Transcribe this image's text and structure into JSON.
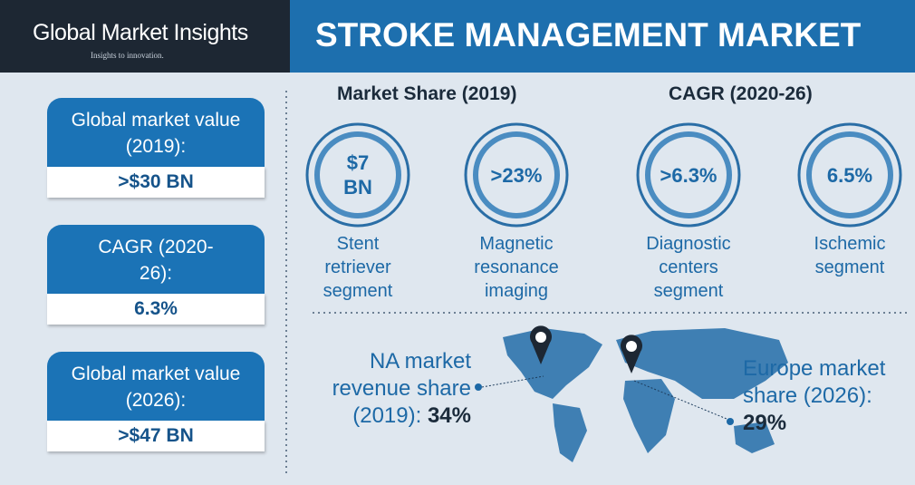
{
  "header": {
    "brand": "Global Market Insights",
    "tagline": "Insights to innovation.",
    "title": "STROKE MANAGEMENT MARKET"
  },
  "cards": [
    {
      "label": "Global market value (2019):",
      "value": ">$30 BN"
    },
    {
      "label": "CAGR (2020-26):",
      "value": "6.3%"
    },
    {
      "label": "Global market value (2026):",
      "value": ">$47 BN"
    }
  ],
  "headings": [
    "Market Share (2019)",
    "CAGR (2020-26)"
  ],
  "circles": [
    {
      "value": "$7 BN",
      "label": "Stent retriever segment"
    },
    {
      "value": ">23%",
      "label": "Magnetic resonance imaging"
    },
    {
      "value": ">6.3%",
      "label": "Diagnostic centers segment"
    },
    {
      "value": "6.5%",
      "label": "Ischemic segment"
    }
  ],
  "regions": [
    {
      "label": "NA market revenue share (2019):",
      "value": "34%"
    },
    {
      "label": "Europe market share (2026):",
      "value": "29%"
    }
  ]
}
